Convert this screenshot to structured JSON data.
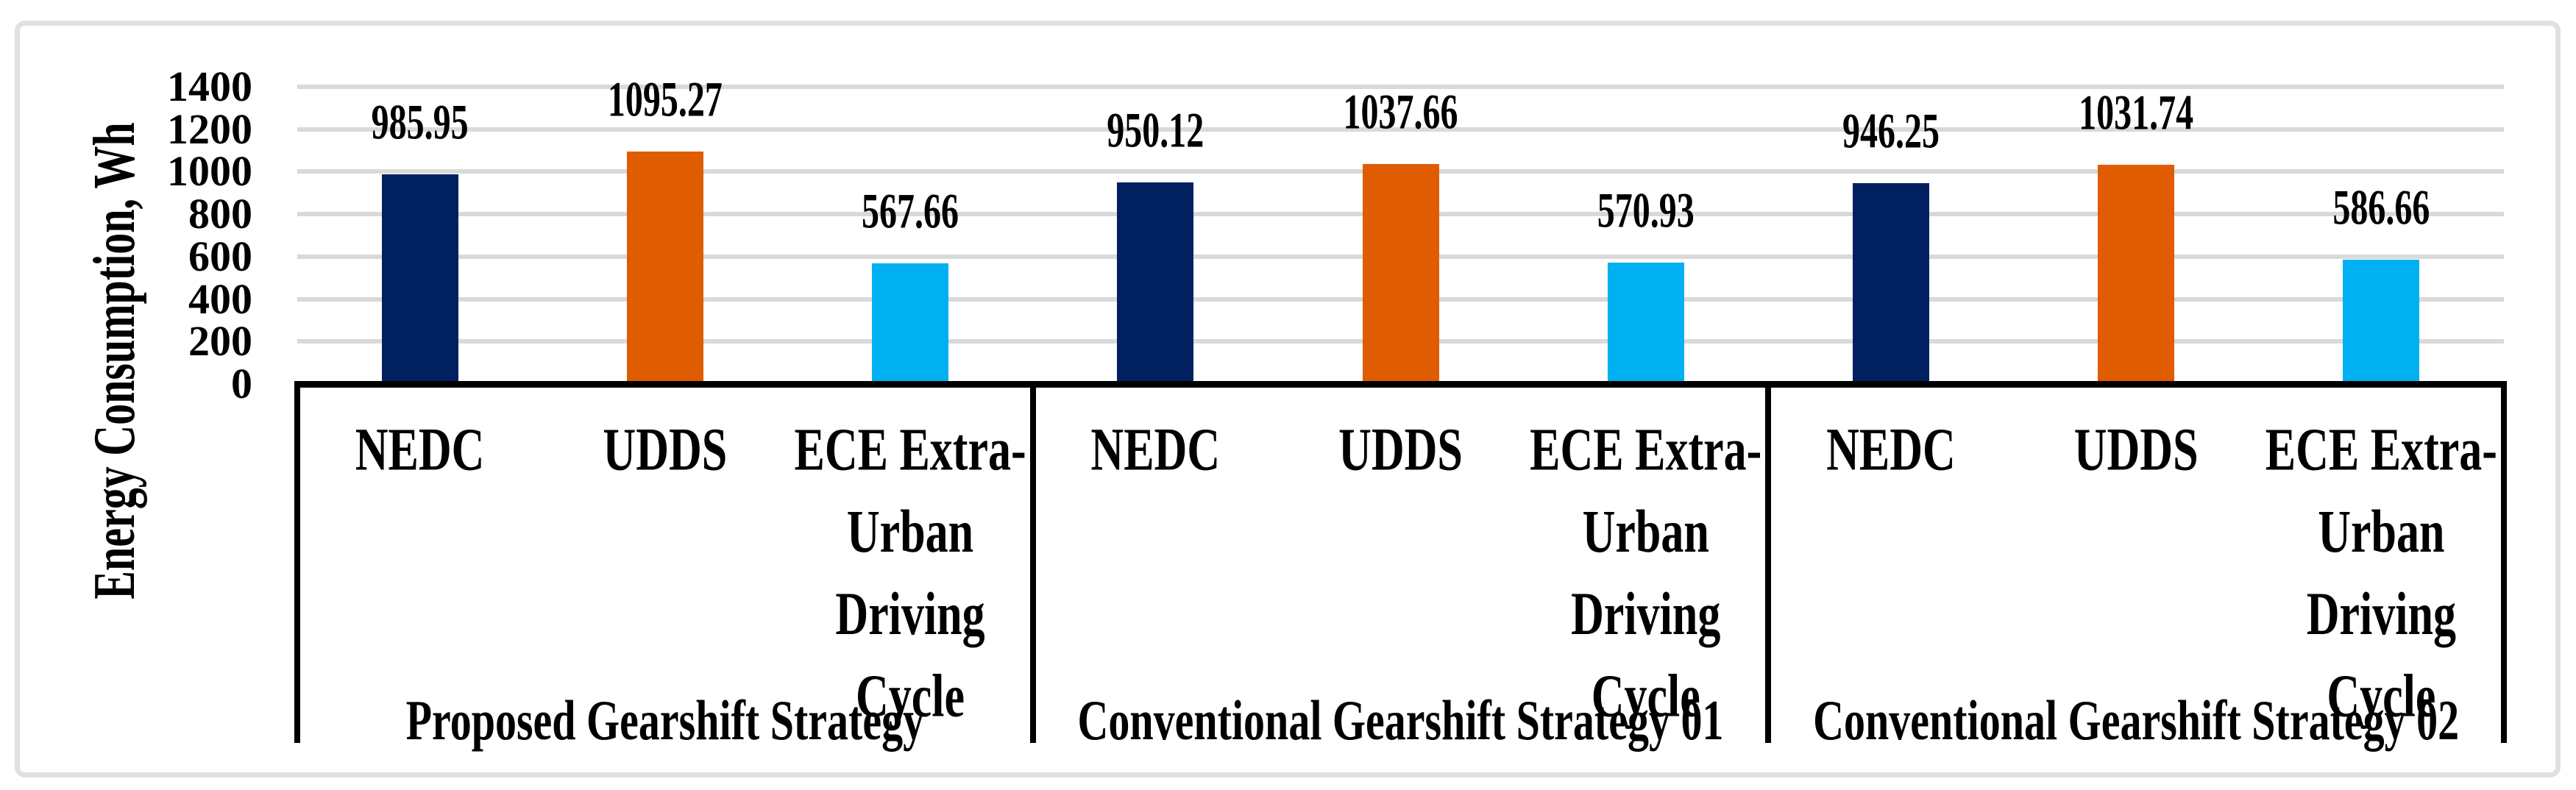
{
  "chart_data": {
    "type": "bar",
    "title": "",
    "xlabel": "",
    "ylabel": "Energy Consumption, Wh",
    "ylim": [
      0,
      1400
    ],
    "ytick_interval": 200,
    "yticks": [
      "0",
      "200",
      "400",
      "600",
      "800",
      "1000",
      "1200",
      "1400"
    ],
    "grid": "horizontal",
    "legend": "none",
    "categories": [
      "NEDC",
      "UDDS",
      "ECE Extra-Urban Driving Cycle"
    ],
    "groups": [
      {
        "label": "Proposed Gearshift Strategy",
        "bars": [
          {
            "category": "NEDC",
            "category_lines": [
              "NEDC"
            ],
            "value": 985.95,
            "value_label": "985.95",
            "color": "#002060"
          },
          {
            "category": "UDDS",
            "category_lines": [
              "UDDS"
            ],
            "value": 1095.27,
            "value_label": "1095.27",
            "color": "#E05C00"
          },
          {
            "category": "ECE Extra-Urban Driving Cycle",
            "category_lines": [
              "ECE Extra-",
              "Urban",
              "Driving",
              "Cycle"
            ],
            "value": 567.66,
            "value_label": "567.66",
            "color": "#00B0F0"
          }
        ]
      },
      {
        "label": "Conventional Gearshift Strategy 01",
        "bars": [
          {
            "category": "NEDC",
            "category_lines": [
              "NEDC"
            ],
            "value": 950.12,
            "value_label": "950.12",
            "color": "#002060"
          },
          {
            "category": "UDDS",
            "category_lines": [
              "UDDS"
            ],
            "value": 1037.66,
            "value_label": "1037.66",
            "color": "#E05C00"
          },
          {
            "category": "ECE Extra-Urban Driving Cycle",
            "category_lines": [
              "ECE Extra-",
              "Urban",
              "Driving",
              "Cycle"
            ],
            "value": 570.93,
            "value_label": "570.93",
            "color": "#00B0F0"
          }
        ]
      },
      {
        "label": "Conventional Gearshift Strategy 02",
        "bars": [
          {
            "category": "NEDC",
            "category_lines": [
              "NEDC"
            ],
            "value": 946.25,
            "value_label": "946.25",
            "color": "#002060"
          },
          {
            "category": "UDDS",
            "category_lines": [
              "UDDS"
            ],
            "value": 1031.74,
            "value_label": "1031.74",
            "color": "#00B0F0-PLACEHOLDER"
          },
          {
            "category": "ECE Extra-Urban Driving Cycle",
            "category_lines": [
              "ECE Extra-",
              "Urban",
              "Driving",
              "Cycle"
            ],
            "value": 586.66,
            "value_label": "586.66",
            "color": "#00B0F0"
          }
        ]
      }
    ],
    "series_colors": {
      "NEDC": "#002060",
      "UDDS": "#E05C00",
      "ECE Extra-Urban Driving Cycle": "#00B0F0"
    },
    "style_colors": {
      "gridline": "#D9D9D9",
      "axis": "#000000",
      "frame_border": "#E0E0E0",
      "background": "#FFFFFF"
    }
  }
}
